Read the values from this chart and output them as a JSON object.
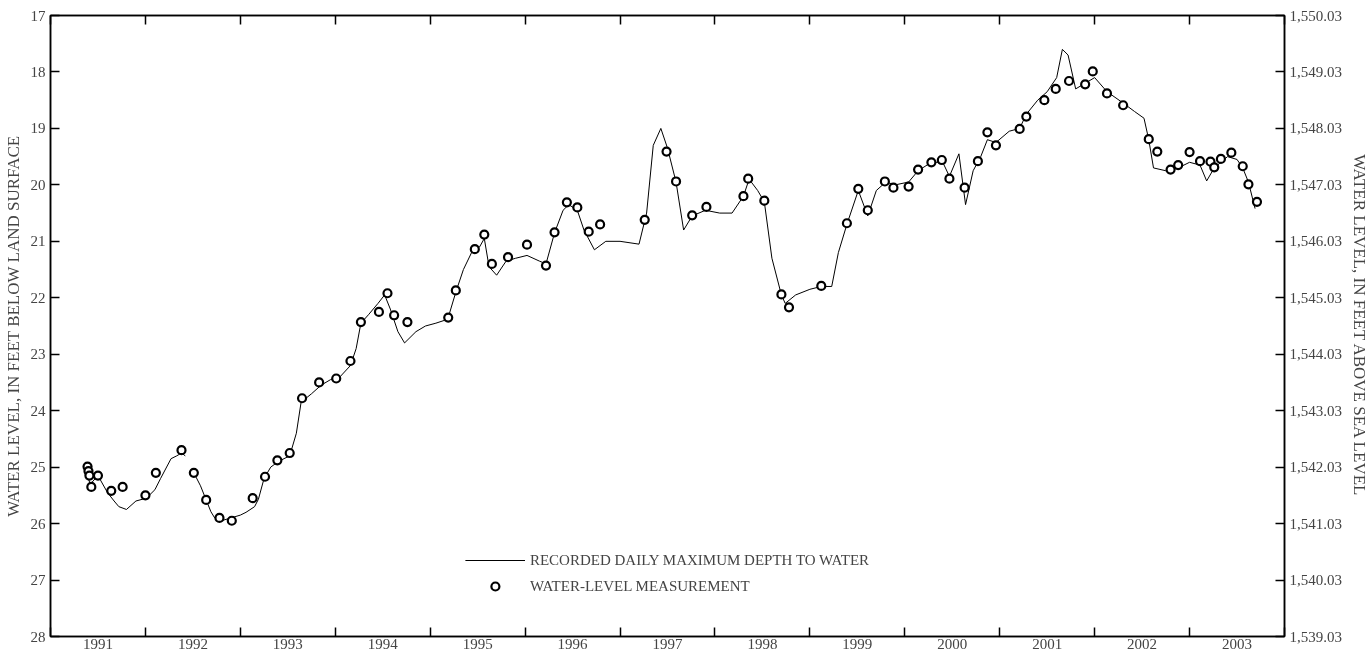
{
  "chart_data": {
    "type": "line",
    "ylabel": "WATER LEVEL, IN FEET BELOW LAND SURFACE",
    "y2label": "WATER LEVEL, IN FEET ABOVE SEA LEVEL",
    "xlim": [
      1991,
      2004
    ],
    "xticks": [
      {
        "value": 1991,
        "label": null
      },
      {
        "value": 1992,
        "label": null
      },
      {
        "value": 1993,
        "label": null
      },
      {
        "value": 1994,
        "label": null
      },
      {
        "value": 1995,
        "label": null
      },
      {
        "value": 1996,
        "label": null
      },
      {
        "value": 1997,
        "label": null
      },
      {
        "value": 1998,
        "label": null
      },
      {
        "value": 1999,
        "label": null
      },
      {
        "value": 2000,
        "label": null
      },
      {
        "value": 2001,
        "label": null
      },
      {
        "value": 2002,
        "label": null
      },
      {
        "value": 2003,
        "label": null
      },
      {
        "value": 2004,
        "label": null
      },
      {
        "value": 1991.5,
        "label": "1991"
      },
      {
        "value": 1992.5,
        "label": "1992"
      },
      {
        "value": 1993.5,
        "label": "1993"
      },
      {
        "value": 1994.5,
        "label": "1994"
      },
      {
        "value": 1995.5,
        "label": "1995"
      },
      {
        "value": 1996.5,
        "label": "1996"
      },
      {
        "value": 1997.5,
        "label": "1997"
      },
      {
        "value": 1998.5,
        "label": "1998"
      },
      {
        "value": 1999.5,
        "label": "1999"
      },
      {
        "value": 2000.5,
        "label": "2000"
      },
      {
        "value": 2001.5,
        "label": "2001"
      },
      {
        "value": 2002.5,
        "label": "2002"
      },
      {
        "value": 2003.5,
        "label": "2003"
      }
    ],
    "ylim": [
      28,
      17
    ],
    "yticks": [
      17,
      18,
      19,
      20,
      21,
      22,
      23,
      24,
      25,
      26,
      27,
      28
    ],
    "y2lim": [
      1539.03,
      1550.03
    ],
    "y2ticks": [
      {
        "value": 1539.03,
        "label": "1,539.03"
      },
      {
        "value": 1540.03,
        "label": "1,540.03"
      },
      {
        "value": 1541.03,
        "label": "1,541.03"
      },
      {
        "value": 1542.03,
        "label": "1,542.03"
      },
      {
        "value": 1543.03,
        "label": "1,543.03"
      },
      {
        "value": 1544.03,
        "label": "1,544.03"
      },
      {
        "value": 1545.03,
        "label": "1,545.03"
      },
      {
        "value": 1546.03,
        "label": "1,546.03"
      },
      {
        "value": 1547.03,
        "label": "1,547.03"
      },
      {
        "value": 1548.03,
        "label": "1,548.03"
      },
      {
        "value": 1549.03,
        "label": "1,549.03"
      },
      {
        "value": 1550.03,
        "label": "1,550.03"
      }
    ],
    "grid": false,
    "legend": "bottom",
    "series": [
      {
        "name": "RECORDED DAILY MAXIMUM DEPTH TO WATER",
        "color": "#000000",
        "marker": "none",
        "line_style": "solid",
        "x": [
          1991.35,
          1991.42,
          1991.5,
          1991.6,
          1991.67,
          1991.72,
          1991.8,
          1991.9,
          1992.01,
          1992.1,
          1992.16,
          1992.27,
          1992.33,
          1992.38,
          1992.42,
          1992.46,
          1992.51,
          1992.58,
          1992.69,
          1992.73,
          1992.8,
          1992.9,
          1993.0,
          1993.06,
          1993.15,
          1993.19,
          1993.25,
          1993.32,
          1993.4,
          1993.52,
          1993.59,
          1993.64,
          1993.75,
          1993.85,
          1993.95,
          1994.05,
          1994.16,
          1994.22,
          1994.27,
          1994.35,
          1994.45,
          1994.52,
          1994.58,
          1994.66,
          1994.73,
          1994.85,
          1994.95,
          1995.06,
          1995.15,
          1995.19,
          1995.27,
          1995.35,
          1995.45,
          1995.52,
          1995.57,
          1995.62,
          1995.7,
          1995.8,
          1995.9,
          1996.02,
          1996.15,
          1996.22,
          1996.31,
          1996.4,
          1996.46,
          1996.55,
          1996.62,
          1996.73,
          1996.85,
          1997.0,
          1997.2,
          1997.28,
          1997.35,
          1997.43,
          1997.5,
          1997.59,
          1997.67,
          1997.76,
          1997.9,
          1998.05,
          1998.18,
          1998.3,
          1998.36,
          1998.45,
          1998.52,
          1998.6,
          1998.7,
          1998.74,
          1998.85,
          1999.0,
          1999.12,
          1999.23,
          1999.3,
          1999.39,
          1999.51,
          1999.61,
          1999.7,
          1999.8,
          1999.9,
          2000.04,
          2000.14,
          2000.28,
          2000.4,
          2000.47,
          2000.57,
          2000.64,
          2000.72,
          2000.8,
          2000.87,
          2000.96,
          2001.1,
          2001.21,
          2001.28,
          2001.4,
          2001.5,
          2001.6,
          2001.66,
          2001.72,
          2001.8,
          2001.9,
          2002.0,
          2002.13,
          2002.3,
          2002.42,
          2002.52,
          2002.57,
          2002.62,
          2002.75,
          2002.88,
          2003.0,
          2003.11,
          2003.18,
          2003.26,
          2003.4,
          2003.5,
          2003.56,
          2003.62,
          2003.69
        ],
        "values": [
          25.0,
          25.3,
          25.15,
          25.45,
          25.6,
          25.7,
          25.75,
          25.6,
          25.55,
          25.4,
          25.2,
          24.85,
          24.8,
          24.75,
          24.8,
          null,
          25.1,
          25.33,
          25.79,
          25.9,
          25.95,
          25.9,
          25.85,
          25.8,
          25.7,
          25.57,
          25.2,
          25.0,
          24.9,
          24.8,
          24.4,
          23.85,
          23.7,
          23.55,
          23.45,
          23.4,
          23.2,
          22.9,
          22.45,
          22.3,
          22.1,
          21.95,
          22.2,
          22.6,
          22.8,
          22.6,
          22.5,
          22.45,
          22.4,
          22.35,
          21.9,
          21.5,
          21.15,
          21.1,
          20.95,
          21.45,
          21.6,
          21.35,
          21.3,
          21.25,
          21.35,
          21.4,
          20.85,
          20.45,
          20.35,
          20.45,
          20.8,
          21.15,
          21.0,
          21.0,
          21.05,
          20.5,
          19.3,
          19.0,
          19.35,
          19.95,
          20.8,
          20.55,
          20.45,
          20.5,
          20.5,
          20.2,
          19.9,
          20.1,
          20.3,
          21.3,
          21.95,
          22.1,
          21.95,
          21.85,
          21.8,
          21.8,
          21.2,
          20.7,
          20.1,
          20.55,
          20.1,
          19.95,
          20.0,
          19.95,
          19.75,
          19.6,
          19.6,
          19.85,
          19.45,
          20.35,
          19.75,
          19.5,
          19.2,
          19.25,
          19.05,
          19.0,
          18.75,
          18.5,
          18.35,
          18.1,
          17.6,
          17.7,
          18.3,
          18.2,
          18.1,
          18.35,
          18.55,
          18.7,
          18.82,
          19.2,
          19.7,
          19.75,
          19.7,
          19.6,
          19.65,
          19.93,
          19.7,
          19.5,
          19.55,
          19.7,
          19.95,
          20.42
        ]
      },
      {
        "name": "WATER-LEVEL MEASUREMENT",
        "type": "scatter",
        "color": "#000000",
        "marker": "circle",
        "x": [
          1991.39,
          1991.4,
          1991.41,
          1991.43,
          1991.5,
          1991.64,
          1991.76,
          1992.0,
          1992.11,
          1992.38,
          1992.51,
          1992.64,
          1992.78,
          1992.91,
          1993.13,
          1993.26,
          1993.39,
          1993.52,
          1993.65,
          1993.83,
          1994.01,
          1994.16,
          1994.27,
          1994.46,
          1994.55,
          1994.62,
          1994.76,
          1995.19,
          1995.27,
          1995.47,
          1995.57,
          1995.65,
          1995.82,
          1996.02,
          1996.22,
          1996.31,
          1996.44,
          1996.55,
          1996.67,
          1996.79,
          1997.26,
          1997.49,
          1997.59,
          1997.76,
          1997.91,
          1998.3,
          1998.35,
          1998.52,
          1998.7,
          1998.78,
          1999.12,
          1999.39,
          1999.51,
          1999.61,
          1999.79,
          1999.88,
          2000.04,
          2000.14,
          2000.28,
          2000.39,
          2000.47,
          2000.63,
          2000.77,
          2000.87,
          2000.96,
          2001.21,
          2001.28,
          2001.47,
          2001.59,
          2001.73,
          2001.9,
          2001.98,
          2002.13,
          2002.3,
          2002.57,
          2002.66,
          2002.8,
          2002.88,
          2003.0,
          2003.11,
          2003.22,
          2003.26,
          2003.33,
          2003.44,
          2003.56,
          2003.62,
          2003.71
        ],
        "values": [
          24.99,
          25.07,
          25.15,
          25.35,
          25.15,
          25.42,
          25.35,
          25.5,
          25.1,
          24.7,
          25.1,
          25.58,
          25.9,
          25.95,
          25.55,
          25.17,
          24.88,
          24.75,
          23.78,
          23.5,
          23.43,
          23.12,
          22.43,
          22.25,
          21.92,
          22.31,
          22.43,
          22.35,
          21.87,
          21.14,
          20.88,
          21.4,
          21.28,
          21.06,
          21.43,
          20.84,
          20.31,
          20.4,
          20.83,
          20.7,
          20.62,
          19.41,
          19.94,
          20.54,
          20.39,
          20.2,
          19.89,
          20.28,
          21.94,
          22.17,
          21.79,
          20.68,
          20.07,
          20.45,
          19.94,
          20.05,
          20.03,
          19.73,
          19.6,
          19.56,
          19.89,
          20.05,
          19.58,
          19.07,
          19.3,
          19.01,
          18.79,
          18.5,
          18.3,
          18.16,
          18.22,
          17.99,
          18.38,
          18.59,
          19.19,
          19.41,
          19.73,
          19.65,
          19.42,
          19.58,
          19.59,
          19.69,
          19.54,
          19.43,
          19.67,
          19.99,
          20.3
        ]
      }
    ]
  }
}
